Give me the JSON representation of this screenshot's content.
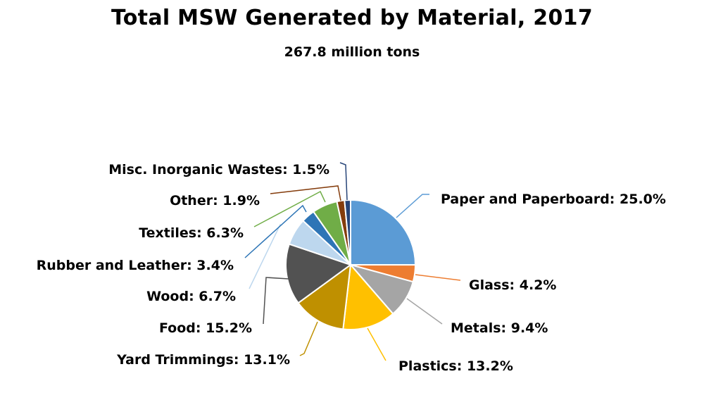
{
  "chart_data": {
    "type": "pie",
    "title": "Total MSW Generated by Material, 2017",
    "subtitle": "267.8 million tons",
    "slices": [
      {
        "label": "Paper and Paperboard: 25.0%",
        "value": 25.0,
        "color": "#5b9bd5"
      },
      {
        "label": "Glass: 4.2%",
        "value": 4.2,
        "color": "#ed7d31"
      },
      {
        "label": "Metals: 9.4%",
        "value": 9.4,
        "color": "#a5a5a5"
      },
      {
        "label": "Plastics: 13.2%",
        "value": 13.2,
        "color": "#ffc000"
      },
      {
        "label": "Yard Trimmings: 13.1%",
        "value": 13.1,
        "color": "#bf9000"
      },
      {
        "label": "Food: 15.2%",
        "value": 15.2,
        "color": "#525252"
      },
      {
        "label": "Wood: 6.7%",
        "value": 6.7,
        "color": "#bdd7ee"
      },
      {
        "label": "Rubber and Leather: 3.4%",
        "value": 3.4,
        "color": "#2e75b6"
      },
      {
        "label": "Textiles: 6.3%",
        "value": 6.3,
        "color": "#70ad47"
      },
      {
        "label": "Other: 1.9%",
        "value": 1.9,
        "color": "#843c0c"
      },
      {
        "label": "Misc. Inorganic Wastes: 1.5%",
        "value": 1.5,
        "color": "#264478"
      }
    ]
  }
}
